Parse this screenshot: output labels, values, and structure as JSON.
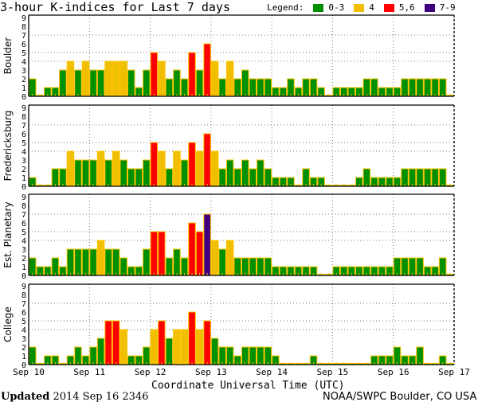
{
  "title": "3-hour K-indices for Last 7 days",
  "legend": {
    "label": "Legend:",
    "items": [
      {
        "label": "0-3",
        "color": "#009000"
      },
      {
        "label": "4",
        "color": "#f0c000"
      },
      {
        "label": "5,6",
        "color": "#ff0000"
      },
      {
        "label": "7-9",
        "color": "#400080"
      }
    ]
  },
  "footer": {
    "updated_label": "Updated",
    "updated_value": "2014 Sep 16 2346",
    "credit": "NOAA/SWPC Boulder, CO USA"
  },
  "chart_data": {
    "type": "bar",
    "xlabel": "Coordinate Universal Time (UTC)",
    "x_ticks": [
      "Sep 10",
      "Sep 11",
      "Sep 12",
      "Sep 13",
      "Sep 14",
      "Sep 15",
      "Sep 16",
      "Sep 17"
    ],
    "y_ticks": [
      0,
      1,
      2,
      3,
      4,
      5,
      6,
      7,
      8,
      9
    ],
    "ylim": [
      0,
      9
    ],
    "grid_y": [
      4,
      5,
      7
    ],
    "bars_per_day": 8,
    "bar_border_color": "#ffc000",
    "series": [
      {
        "name": "Boulder",
        "values": [
          2,
          0,
          1,
          1,
          3,
          4,
          3,
          4,
          3,
          3,
          4,
          4,
          4,
          3,
          1,
          3,
          5,
          4,
          2,
          3,
          2,
          5,
          3,
          6,
          4,
          2,
          4,
          2,
          3,
          2,
          2,
          2,
          1,
          1,
          2,
          1,
          2,
          2,
          1,
          0,
          1,
          1,
          1,
          1,
          2,
          2,
          1,
          1,
          1,
          2,
          2,
          2,
          2,
          2,
          2,
          0
        ]
      },
      {
        "name": "Fredericksburg",
        "values": [
          1,
          0,
          0,
          2,
          2,
          4,
          3,
          3,
          3,
          4,
          3,
          4,
          3,
          2,
          2,
          3,
          5,
          4,
          2,
          4,
          3,
          5,
          4,
          6,
          4,
          2,
          3,
          2,
          3,
          2,
          3,
          2,
          1,
          1,
          1,
          0,
          2,
          1,
          1,
          0,
          0,
          0,
          0,
          1,
          2,
          1,
          1,
          1,
          1,
          2,
          2,
          2,
          2,
          2,
          2,
          0
        ]
      },
      {
        "name": "Est. Planetary",
        "values": [
          2,
          1,
          1,
          2,
          1,
          3,
          3,
          3,
          3,
          4,
          3,
          3,
          2,
          1,
          1,
          3,
          5,
          5,
          2,
          3,
          2,
          6,
          5,
          7,
          4,
          3,
          4,
          2,
          2,
          2,
          2,
          2,
          1,
          1,
          1,
          1,
          1,
          1,
          0,
          0,
          1,
          1,
          1,
          1,
          1,
          1,
          1,
          1,
          2,
          2,
          2,
          2,
          1,
          1,
          2,
          0
        ]
      },
      {
        "name": "College",
        "values": [
          2,
          0,
          1,
          1,
          0,
          1,
          2,
          1,
          2,
          3,
          5,
          5,
          4,
          1,
          1,
          2,
          4,
          5,
          3,
          4,
          4,
          6,
          4,
          5,
          3,
          2,
          2,
          1,
          2,
          2,
          2,
          2,
          1,
          0,
          0,
          0,
          0,
          1,
          0,
          0,
          0,
          0,
          0,
          0,
          0,
          1,
          1,
          1,
          2,
          1,
          1,
          2,
          0,
          0,
          1,
          0
        ]
      }
    ]
  }
}
